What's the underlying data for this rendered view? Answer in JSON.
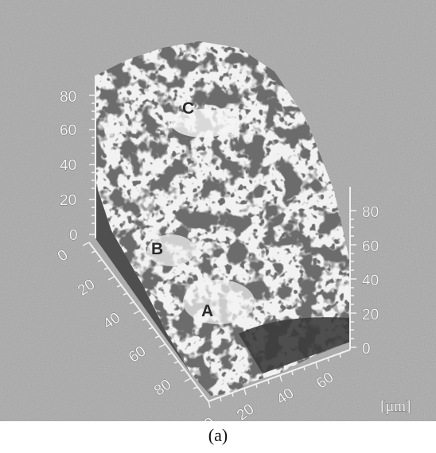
{
  "figure": {
    "caption": "(a)",
    "unit_label": "[µm]",
    "region_labels": [
      "A",
      "B",
      "C"
    ],
    "axis_left_ticks": [
      "80",
      "60",
      "40",
      "20",
      "0"
    ],
    "axis_depth_ticks": [
      "0",
      "20",
      "40",
      "60",
      "80"
    ],
    "axis_front_ticks": [
      "0",
      "20",
      "40",
      "60"
    ],
    "axis_right_ticks": [
      "80",
      "60",
      "40",
      "20",
      "0"
    ],
    "colors": {
      "background": "#a9a9a9",
      "surface_light": "#eeeeee",
      "surface_dark": "#3a3a3a",
      "base_wall": "#5a5a5a"
    }
  }
}
